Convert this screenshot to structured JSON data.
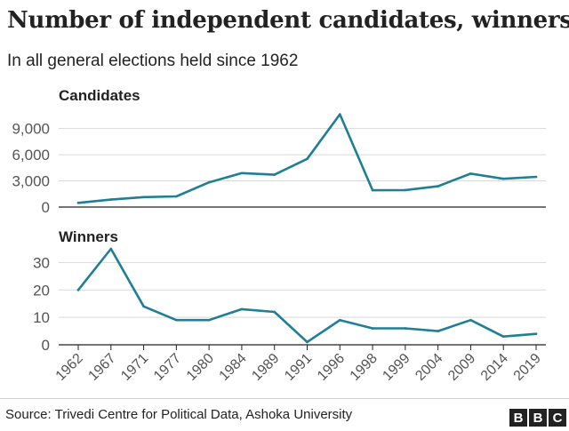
{
  "title": "Number of independent candidates, winners",
  "subtitle": "In all general elections held since 1962",
  "source": "Source: Trivedi Centre for Political Data, Ashoka University",
  "logo": [
    "B",
    "B",
    "C"
  ],
  "colors": {
    "line": "#1f7f94",
    "grid": "#d9d9d9",
    "baseline": "#222222",
    "text": "#222222",
    "tick_label": "#555555"
  },
  "chart_data": [
    {
      "type": "line",
      "title": "Candidates",
      "categories": [
        "1962",
        "1967",
        "1971",
        "1977",
        "1980",
        "1984",
        "1989",
        "1991",
        "1996",
        "1998",
        "1999",
        "2004",
        "2009",
        "2014",
        "2019"
      ],
      "values": [
        480,
        860,
        1140,
        1220,
        2830,
        3890,
        3710,
        5520,
        10630,
        1920,
        1950,
        2380,
        3830,
        3240,
        3460
      ],
      "yticks": [
        0,
        3000,
        6000,
        9000
      ],
      "ytick_labels": [
        "0",
        "3,000",
        "6,000",
        "9,000"
      ],
      "ylim": [
        0,
        11000
      ]
    },
    {
      "type": "line",
      "title": "Winners",
      "categories": [
        "1962",
        "1967",
        "1971",
        "1977",
        "1980",
        "1984",
        "1989",
        "1991",
        "1996",
        "1998",
        "1999",
        "2004",
        "2009",
        "2014",
        "2019"
      ],
      "values": [
        20,
        35,
        14,
        9,
        9,
        13,
        12,
        1,
        9,
        6,
        6,
        5,
        9,
        3,
        4
      ],
      "yticks": [
        0,
        10,
        20,
        30
      ],
      "ytick_labels": [
        "0",
        "10",
        "20",
        "30"
      ],
      "ylim": [
        0,
        35
      ]
    }
  ]
}
